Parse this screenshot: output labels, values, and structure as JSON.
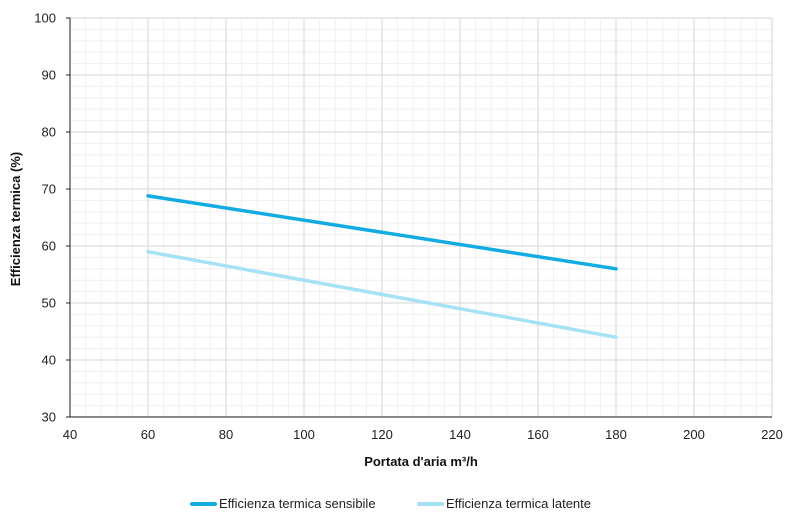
{
  "chart_data": {
    "type": "line",
    "xlabel": "Portata d'aria m³/h",
    "ylabel": "Efficienza termica (%)",
    "xlim": [
      40,
      220
    ],
    "ylim": [
      30,
      100
    ],
    "xticks": [
      40,
      60,
      80,
      100,
      120,
      140,
      160,
      180,
      200,
      220
    ],
    "yticks": [
      30,
      40,
      50,
      60,
      70,
      80,
      90,
      100
    ],
    "grid": true,
    "legend_position": "bottom-center",
    "series": [
      {
        "name": "Efficienza termica sensibile",
        "color": "#12ace3",
        "x": [
          60,
          180
        ],
        "y": [
          68.8,
          56
        ]
      },
      {
        "name": "Efficienza termica latente",
        "color": "#a6e2f6",
        "x": [
          60,
          180
        ],
        "y": [
          59,
          44
        ]
      }
    ]
  },
  "colors": {
    "grid_major": "#dddddd",
    "grid_minor": "#f0f0f0",
    "axis": "#222222"
  }
}
